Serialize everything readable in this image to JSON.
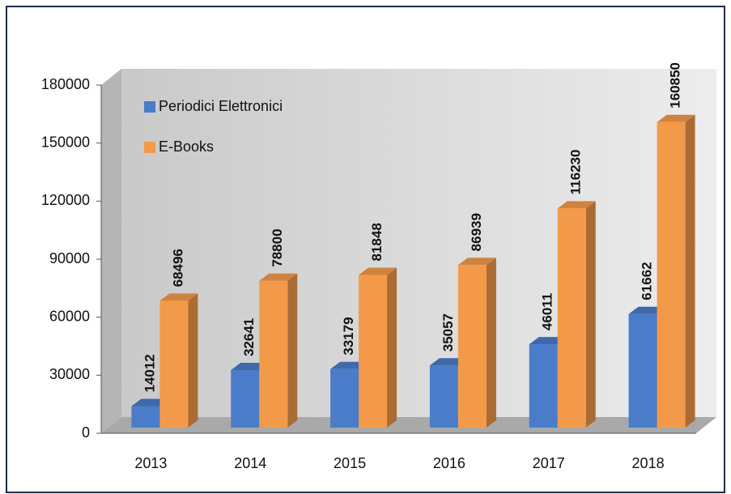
{
  "chart_data": {
    "type": "bar",
    "categories": [
      "2013",
      "2014",
      "2015",
      "2016",
      "2017",
      "2018"
    ],
    "series": [
      {
        "name": "Periodici Elettronici",
        "color": "#4a7cc9",
        "values": [
          14012,
          32641,
          33179,
          35057,
          46011,
          61662
        ]
      },
      {
        "name": "E-Books",
        "color": "#f39a4a",
        "values": [
          68496,
          78800,
          81848,
          86939,
          116230,
          160850
        ]
      }
    ],
    "ylim": [
      0,
      180000
    ],
    "yticks": [
      0,
      30000,
      60000,
      90000,
      120000,
      150000,
      180000
    ],
    "grid": false,
    "legend": "upper left",
    "three_d": true
  }
}
